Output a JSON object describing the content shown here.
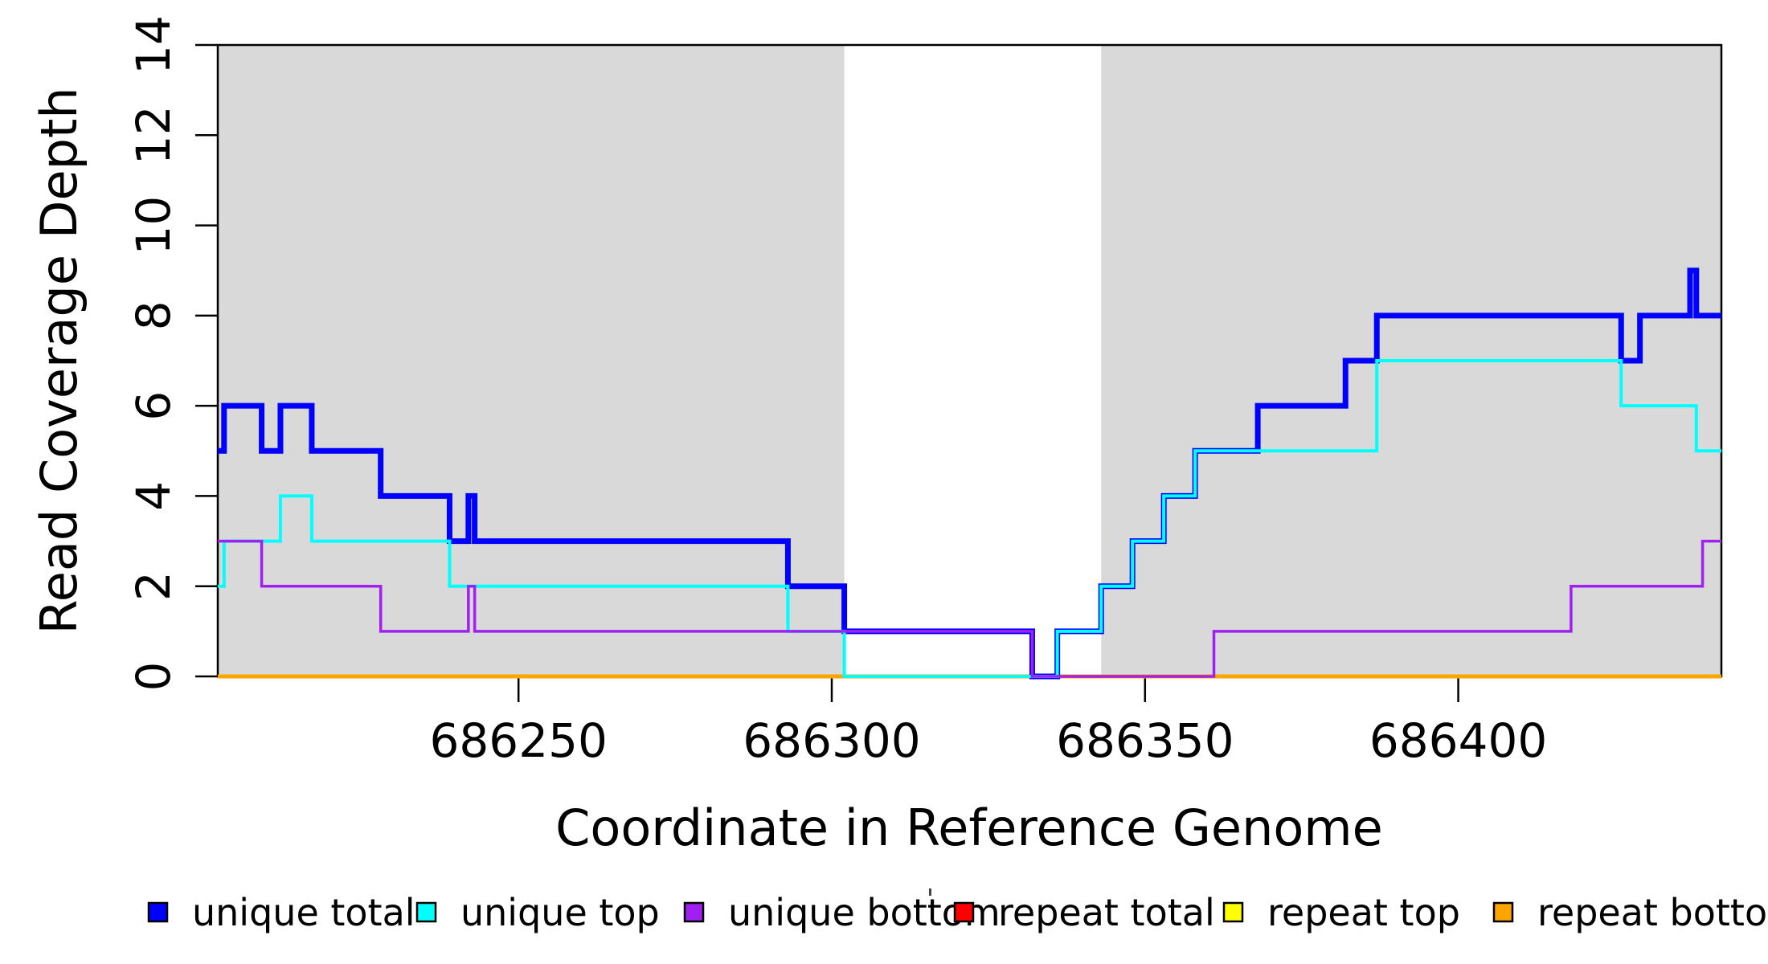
{
  "colors": {
    "background": "#FFFFFF",
    "shade": "#D9D9D9",
    "axis": "#000000"
  },
  "chart_data": {
    "type": "line",
    "subtype": "step-after-coverage-plot",
    "title": "",
    "xlabel": "Coordinate in Reference Genome",
    "ylabel": "Read Coverage Depth",
    "xlim": [
      686202,
      686442
    ],
    "ylim": [
      0,
      14
    ],
    "x_ticks": [
      686250,
      686300,
      686350,
      686400
    ],
    "y_ticks": [
      0,
      2,
      4,
      6,
      8,
      10,
      12,
      14
    ],
    "grid": false,
    "legend_position": "bottom",
    "shaded_regions": [
      [
        686202,
        686302
      ],
      [
        686343,
        686442
      ]
    ],
    "series": [
      {
        "name": "repeat total",
        "color": "#FF0000",
        "width": 4,
        "steps": [
          [
            686202,
            0
          ],
          [
            686442,
            0
          ]
        ]
      },
      {
        "name": "repeat top",
        "color": "#FFFF00",
        "width": 4,
        "steps": [
          [
            686202,
            0
          ],
          [
            686442,
            0
          ]
        ]
      },
      {
        "name": "repeat bottom",
        "color": "#FFA500",
        "width": 5,
        "steps": [
          [
            686202,
            0
          ],
          [
            686442,
            0
          ]
        ]
      },
      {
        "name": "unique total",
        "color": "#0000FF",
        "width": 7,
        "steps": [
          [
            686202,
            5
          ],
          [
            686203,
            6
          ],
          [
            686209,
            5
          ],
          [
            686212,
            6
          ],
          [
            686217,
            5
          ],
          [
            686228,
            4
          ],
          [
            686239,
            3
          ],
          [
            686242,
            4
          ],
          [
            686243,
            3
          ],
          [
            686293,
            2
          ],
          [
            686302,
            1
          ],
          [
            686332,
            0
          ],
          [
            686336,
            1
          ],
          [
            686343,
            2
          ],
          [
            686348,
            3
          ],
          [
            686353,
            4
          ],
          [
            686358,
            5
          ],
          [
            686368,
            6
          ],
          [
            686382,
            7
          ],
          [
            686387,
            8
          ],
          [
            686426,
            7
          ],
          [
            686429,
            8
          ],
          [
            686437,
            9
          ],
          [
            686438,
            8
          ],
          [
            686442,
            8
          ]
        ]
      },
      {
        "name": "unique top",
        "color": "#00FFFF",
        "width": 4,
        "steps": [
          [
            686202,
            2
          ],
          [
            686203,
            3
          ],
          [
            686212,
            4
          ],
          [
            686217,
            3
          ],
          [
            686239,
            2
          ],
          [
            686293,
            1
          ],
          [
            686302,
            0
          ],
          [
            686336,
            1
          ],
          [
            686343,
            2
          ],
          [
            686348,
            3
          ],
          [
            686353,
            4
          ],
          [
            686358,
            5
          ],
          [
            686387,
            7
          ],
          [
            686426,
            6
          ],
          [
            686438,
            5
          ],
          [
            686442,
            5
          ]
        ]
      },
      {
        "name": "unique bottom",
        "color": "#A020F0",
        "width": 3.5,
        "steps": [
          [
            686202,
            3
          ],
          [
            686209,
            2
          ],
          [
            686228,
            1
          ],
          [
            686242,
            2
          ],
          [
            686243,
            1
          ],
          [
            686332,
            0
          ],
          [
            686361,
            1
          ],
          [
            686418,
            2
          ],
          [
            686439,
            3
          ],
          [
            686442,
            3
          ]
        ]
      }
    ]
  },
  "legend": {
    "items": [
      {
        "label": "unique total",
        "color": "#0000FF"
      },
      {
        "label": "unique top",
        "color": "#00FFFF"
      },
      {
        "label": "unique bottom",
        "color": "#A020F0"
      },
      {
        "label": "repeat total",
        "color": "#FF0000"
      },
      {
        "label": "repeat top",
        "color": "#FFFF00"
      },
      {
        "label": "repeat bottom",
        "color": "#FFA500"
      }
    ]
  }
}
